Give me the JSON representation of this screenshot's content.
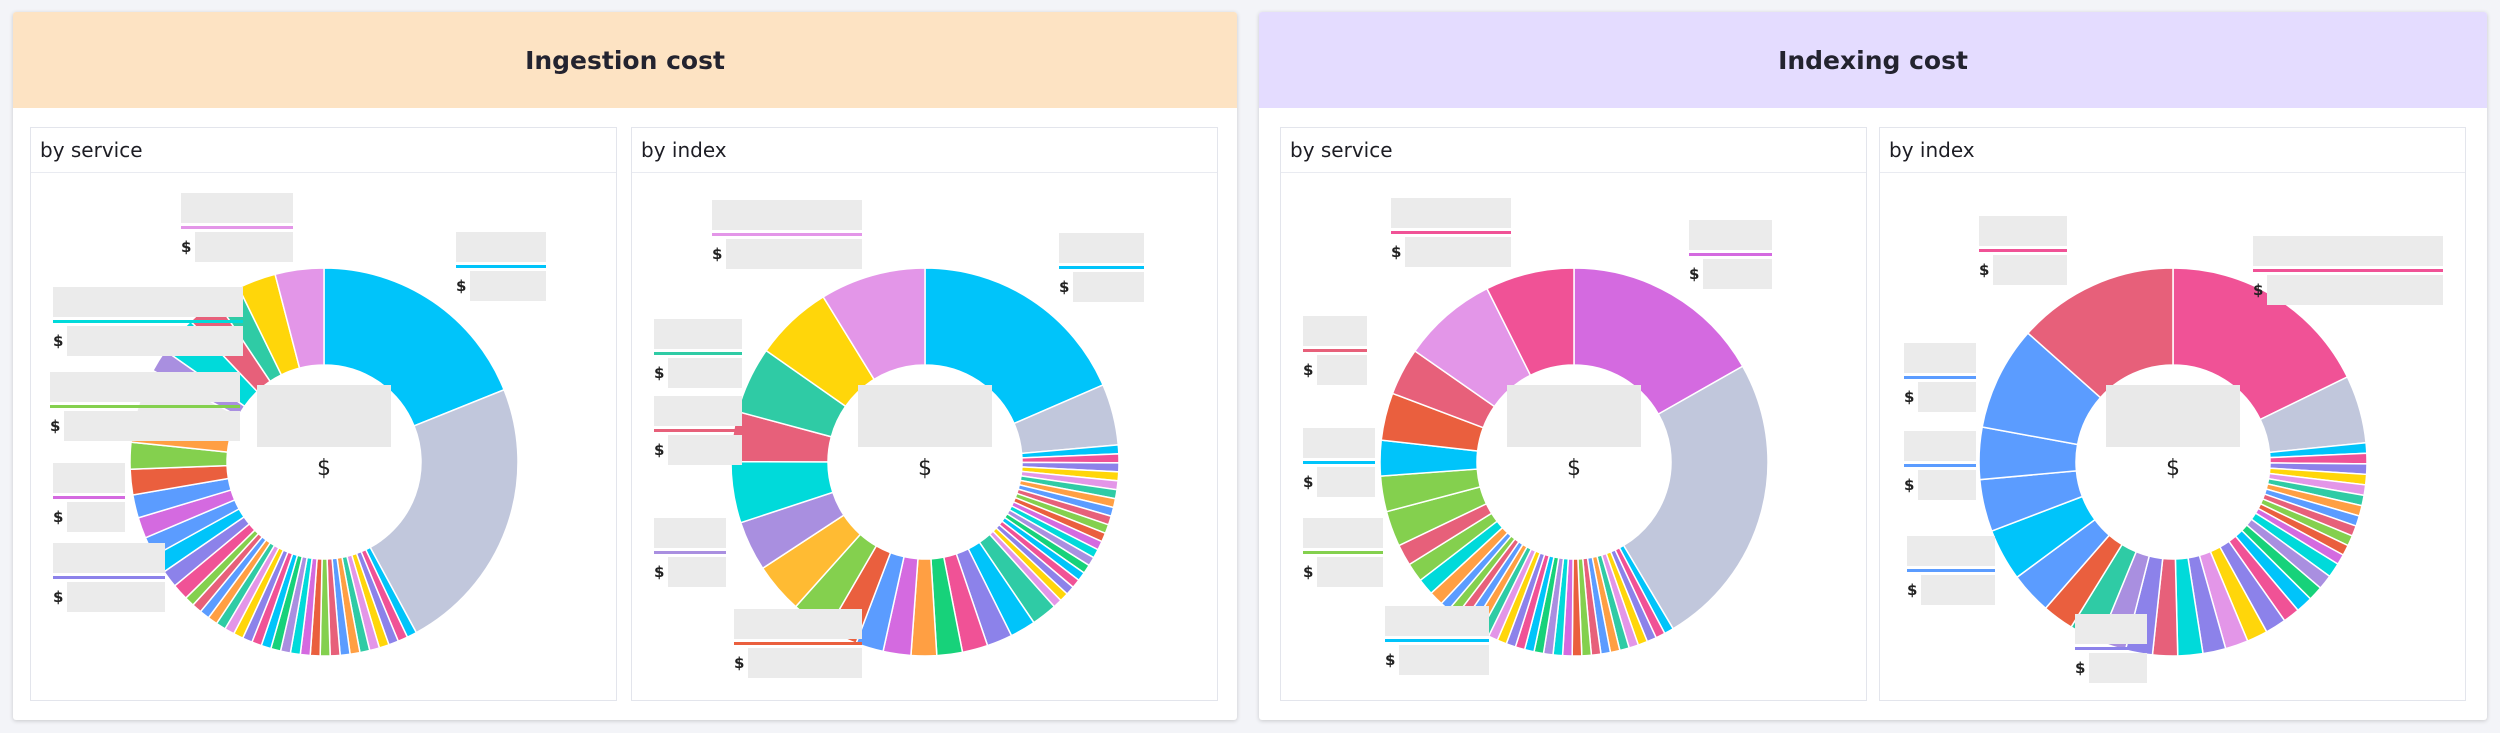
{
  "currency_symbol": "$",
  "palette": [
    "#00c4fa",
    "#f05296",
    "#8c82ea",
    "#ffd60a",
    "#e396e8",
    "#2fcba5",
    "#ff9f43",
    "#5b9cff",
    "#e7607a",
    "#84d04e",
    "#ea5f3e",
    "#d46ae0",
    "#00dada",
    "#a98fe0",
    "#17d27a"
  ],
  "cards": [
    {
      "title": "Ingestion cost",
      "header_color": "#fde3c3",
      "panels": [
        {
          "title": "by service"
        },
        {
          "title": "by index"
        }
      ]
    },
    {
      "title": "Indexing cost",
      "header_color": "#e4dcff",
      "panels": [
        {
          "title": "by service"
        },
        {
          "title": "by index"
        }
      ]
    }
  ],
  "chart_data": [
    {
      "type": "pie",
      "style": "donut",
      "title": "Ingestion cost by service",
      "center_label": "$",
      "values": [
        19.6,
        24,
        0.85,
        0.85,
        0.85,
        0.85,
        0.85,
        0.85,
        0.85,
        0.85,
        0.85,
        0.85,
        0.85,
        0.85,
        0.85,
        0.85,
        0.85,
        0.85,
        0.85,
        0.85,
        0.85,
        0.85,
        0.85,
        0.85,
        0.85,
        0.85,
        0.85,
        1.4,
        1.5,
        1.6,
        1.7,
        1.8,
        2,
        2.2,
        2.3,
        2,
        4.4,
        2,
        3.3,
        2.8,
        2.2,
        3.3,
        4.2
      ],
      "head_colors": [
        "#00c4fa",
        "#c1c7dc"
      ],
      "tail_colors": [
        "#f05296",
        "#8c82ea",
        "#00c4fa",
        "#5b9cff",
        "#d46ae0",
        "#5b9cff",
        "#ea5f3e",
        "#84d04e",
        "#ff9f43",
        "#ebebeb",
        "#a98fe0",
        "#00dada",
        "#e7607a",
        "#2fcba5",
        "#ffd60a",
        "#e396e8"
      ]
    },
    {
      "type": "pie",
      "style": "donut",
      "title": "Ingestion cost by index",
      "center_label": "$",
      "values": [
        20,
        5.5,
        0.8,
        0.8,
        0.8,
        0.8,
        0.8,
        0.8,
        0.8,
        0.8,
        0.8,
        0.8,
        0.8,
        0.8,
        0.8,
        0.8,
        0.8,
        0.8,
        0.8,
        0.8,
        0.8,
        0.8,
        2.3,
        2.3,
        2.3,
        2.3,
        2.3,
        2.3,
        2.5,
        2.5,
        2.8,
        3.5,
        4.5,
        4.5,
        5.5,
        4.5,
        6,
        7,
        9.5
      ],
      "head_colors": [
        "#00c4fa",
        "#c1c7dc"
      ],
      "tail_colors": [
        "#00c4fa",
        "#8c82ea",
        "#f05296",
        "#17d27a",
        "#ff9f43",
        "#d46ae0",
        "#5b9cff",
        "#ea5f3e",
        "#84d04e",
        "#ffbb33",
        "#a98fe0",
        "#00dada",
        "#e7607a",
        "#2fcba5",
        "#ffd60a",
        "#e396e8"
      ]
    },
    {
      "type": "pie",
      "style": "donut",
      "title": "Indexing cost by service",
      "center_label": "$",
      "values": [
        17,
        25,
        0.8,
        0.8,
        0.8,
        0.8,
        0.8,
        0.8,
        0.8,
        0.8,
        0.8,
        0.8,
        0.8,
        0.8,
        0.8,
        0.8,
        0.8,
        0.8,
        0.8,
        0.8,
        0.8,
        0.8,
        0.8,
        0.8,
        0.8,
        0.8,
        0.8,
        0.8,
        1.2,
        1.4,
        1.6,
        1.8,
        3,
        3,
        3,
        4,
        4,
        8,
        7.5
      ],
      "head_colors": [
        "#d46ae0",
        "#c1c7dc"
      ],
      "tail_colors": [
        "#5b9cff",
        "#ff9f43",
        "#00dada",
        "#84d04e",
        "#e7607a",
        "#84d04e",
        "#84d04e",
        "#00c4fa",
        "#ea5f3e",
        "#e7607a",
        "#e396e8",
        "#f05296"
      ]
    },
    {
      "type": "pie",
      "style": "donut",
      "title": "Indexing cost by index",
      "center_label": "$",
      "values": [
        20.5,
        6.5,
        1,
        1,
        1,
        1,
        1,
        1,
        1,
        1,
        1,
        1,
        1,
        1,
        1.4,
        1.4,
        1.4,
        1.6,
        1.6,
        2,
        2,
        2.2,
        2.2,
        2.4,
        2.4,
        2.6,
        2.6,
        3,
        3,
        4,
        5,
        5,
        5,
        10,
        15.5
      ],
      "head_colors": [
        "#f05296",
        "#c1c7dc"
      ],
      "tail_colors": [
        "#8c82ea",
        "#00dada",
        "#e7607a",
        "#8c82ea",
        "#a98fe0",
        "#2fcba5",
        "#ea5f3e",
        "#5b9cff",
        "#00c4fa",
        "#5b9cff",
        "#5b9cff",
        "#5b9cff",
        "#e7607a"
      ]
    }
  ]
}
